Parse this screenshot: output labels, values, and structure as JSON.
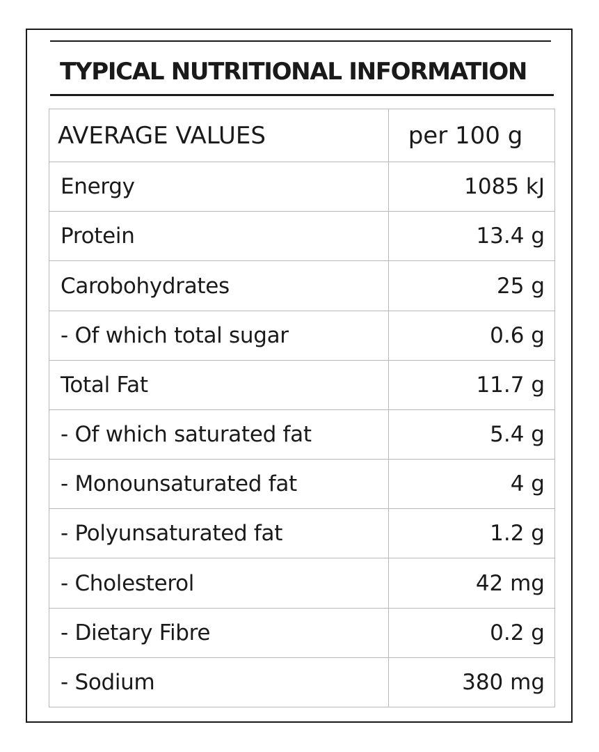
{
  "label": {
    "title": "TYPICAL NUTRITIONAL INFORMATION",
    "header": {
      "name": "AVERAGE VALUES",
      "value": "per 100 g"
    },
    "rows": [
      {
        "name": "Energy",
        "value": "1085 kJ"
      },
      {
        "name": "Protein",
        "value": "13.4 g"
      },
      {
        "name": "Carobohydrates",
        "value": "25 g"
      },
      {
        "name": "- Of which total sugar",
        "value": "0.6 g"
      },
      {
        "name": "Total Fat",
        "value": "11.7 g"
      },
      {
        "name": "- Of which saturated fat",
        "value": "5.4 g"
      },
      {
        "name": "- Monounsaturated fat",
        "value": "4 g"
      },
      {
        "name": "- Polyunsaturated fat",
        "value": "1.2 g"
      },
      {
        "name": "- Cholesterol",
        "value": "42 mg"
      },
      {
        "name": "- Dietary Fibre",
        "value": "0.2 g"
      },
      {
        "name": "- Sodium",
        "value": "380 mg"
      }
    ]
  }
}
